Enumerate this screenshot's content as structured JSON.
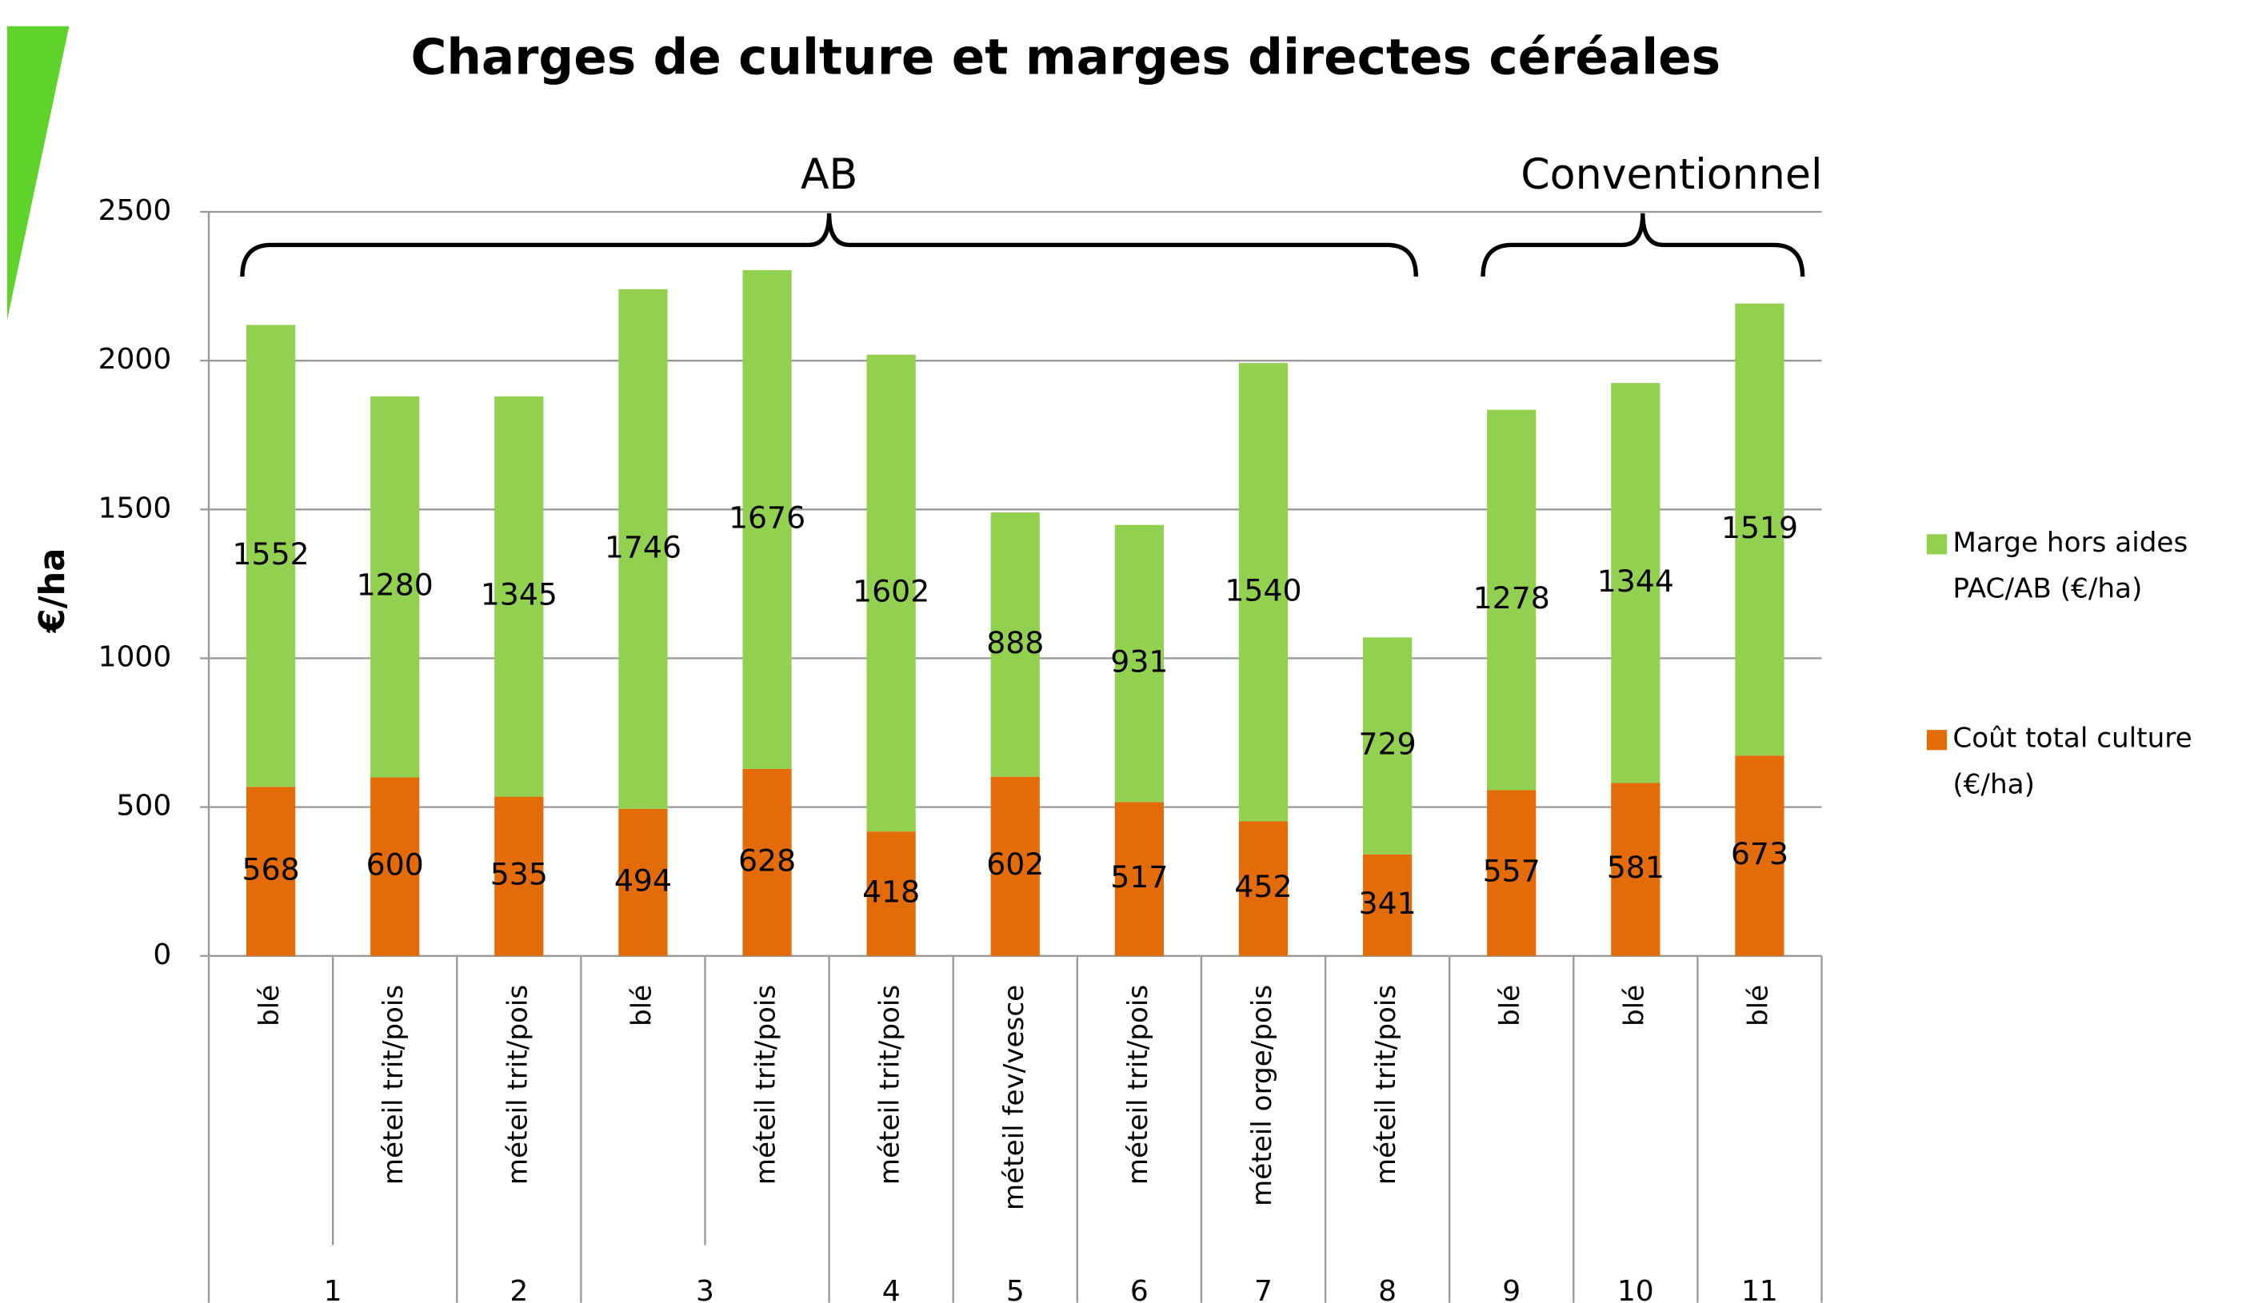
{
  "chart_data": {
    "type": "stacked-bar",
    "title": "Charges de culture et marges directes céréales",
    "y_label": "€/ha",
    "categories": [
      "blé",
      "méteil trit/pois",
      "méteil trit/pois",
      "blé",
      "méteil trit/pois",
      "méteil trit/pois",
      "méteil fev/vesce",
      "méteil trit/pois",
      "méteil orge/pois",
      "méteil trit/pois",
      "blé",
      "blé",
      "blé"
    ],
    "groups": [
      "1",
      "1",
      "2",
      "3",
      "3",
      "4",
      "5",
      "6",
      "7",
      "8",
      "9",
      "10",
      "11"
    ],
    "annotations": [
      "AB",
      "Conventionnel"
    ],
    "series": [
      {
        "name": "Coût total culture (€/ha)",
        "color": "#e36c09",
        "values": [
          568,
          600,
          535,
          494,
          628,
          418,
          602,
          517,
          452,
          341,
          557,
          581,
          673
        ]
      },
      {
        "name": "Marge hors aides PAC/AB (€/ha)",
        "color": "#92d050",
        "values": [
          1552,
          1280,
          1345,
          1746,
          1676,
          1602,
          888,
          931,
          1540,
          729,
          1278,
          1344,
          1519
        ]
      }
    ],
    "ylim": [
      0,
      2500
    ],
    "yticks": [
      0,
      500,
      1000,
      1500,
      2000,
      2500
    ],
    "grid": true
  }
}
